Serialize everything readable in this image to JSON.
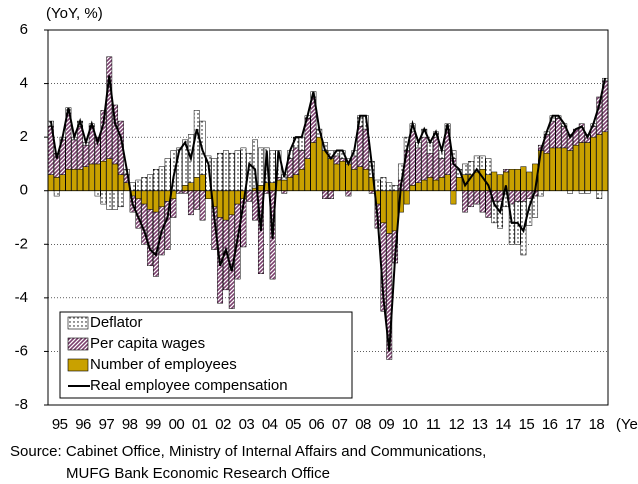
{
  "chart_data": {
    "type": "stacked-bar-line",
    "y_label": "(YoY, %)",
    "x_label": "(Year)",
    "source": [
      "Source: Cabinet Office, Ministry of Internal Affairs and Communications,",
      "MUFG Bank Economic Research Office"
    ],
    "categories": [
      "95",
      null,
      null,
      null,
      "96",
      null,
      null,
      null,
      "97",
      null,
      null,
      null,
      "98",
      null,
      null,
      null,
      "99",
      null,
      null,
      null,
      "00",
      null,
      null,
      null,
      "01",
      null,
      null,
      null,
      "02",
      null,
      null,
      null,
      "03",
      null,
      null,
      null,
      "04",
      null,
      null,
      null,
      "05",
      null,
      null,
      null,
      "06",
      null,
      null,
      null,
      "07",
      null,
      null,
      null,
      "08",
      null,
      null,
      null,
      "09",
      null,
      null,
      null,
      "10",
      null,
      null,
      null,
      "11",
      null,
      null,
      null,
      "12",
      null,
      null,
      null,
      "13",
      null,
      null,
      null,
      "14",
      null,
      null,
      null,
      "15",
      null,
      null,
      null,
      "16",
      null,
      null,
      null,
      "17",
      null,
      null,
      null,
      "18",
      null,
      null,
      null
    ],
    "series": [
      {
        "name": "Deflator",
        "type": "bar",
        "pattern": "dots",
        "color": "#ffffff",
        "values": [
          0.2,
          -0.2,
          0.1,
          0.2,
          0.1,
          0.2,
          0.1,
          0.1,
          -0.2,
          -0.5,
          -0.7,
          -0.7,
          -0.6,
          0.2,
          0.3,
          0.4,
          0.5,
          0.6,
          0.8,
          0.9,
          1.2,
          1.5,
          1.6,
          1.7,
          1.8,
          2.5,
          2.0,
          1.3,
          1.2,
          1.4,
          1.5,
          1.4,
          1.5,
          1.6,
          1.4,
          1.8,
          1.4,
          1.3,
          1.2,
          1.0,
          0.2,
          0.3,
          0.4,
          0.5,
          0.1,
          0.2,
          0.3,
          0.3,
          0.3,
          0.2,
          0.3,
          0.2,
          0.2,
          0.4,
          0.5,
          0.6,
          0.4,
          0.5,
          0.3,
          0.2,
          0.6,
          0.5,
          0.3,
          0.2,
          0.3,
          0.4,
          0.2,
          0.3,
          0.2,
          0.3,
          0.3,
          0.4,
          0.5,
          0.6,
          0.5,
          0.6,
          -0.8,
          -1.0,
          -0.6,
          -1.5,
          -1.6,
          -2.0,
          -1.0,
          -0.8,
          -0.2,
          0.1,
          0.2,
          0.1,
          0.1,
          -0.1,
          0.0,
          -0.1,
          -0.1,
          0.1,
          -0.3,
          0.1
        ]
      },
      {
        "name": "Per capita wages",
        "type": "bar",
        "pattern": "stripes",
        "color": "#7b3f6e",
        "values": [
          1.8,
          0.9,
          1.3,
          2.1,
          1.1,
          1.6,
          0.8,
          1.4,
          1.0,
          1.9,
          3.8,
          2.2,
          2.0,
          0.3,
          -0.6,
          -1.1,
          -1.5,
          -2.1,
          -2.4,
          -1.8,
          -1.8,
          -0.7,
          -0.1,
          -0.1,
          -0.9,
          -0.7,
          -1.1,
          0.0,
          -1.6,
          -3.2,
          -2.6,
          -3.5,
          -2.8,
          -1.8,
          -0.4,
          -1.1,
          -3.1,
          -0.1,
          -3.3,
          0.1,
          -0.1,
          0.7,
          1.0,
          0.7,
          1.5,
          1.7,
          0.0,
          -0.3,
          -0.3,
          0.3,
          0.1,
          -0.2,
          0.5,
          1.5,
          1.5,
          -0.1,
          -0.9,
          -3.3,
          -4.7,
          -1.2,
          0.4,
          1.5,
          2.0,
          1.3,
          1.6,
          0.9,
          1.6,
          0.7,
          1.7,
          1.2,
          0.0,
          -0.8,
          -0.6,
          -0.5,
          -0.8,
          -1.0,
          -0.4,
          -0.4,
          0.1,
          -0.5,
          -0.4,
          -0.4,
          -0.3,
          -0.2,
          0.2,
          0.7,
          1.0,
          1.1,
          0.8,
          0.6,
          0.6,
          0.7,
          0.3,
          0.4,
          1.4,
          1.9
        ]
      },
      {
        "name": "Number of employees",
        "type": "bar",
        "pattern": "solid",
        "color": "#c9a100",
        "values": [
          0.6,
          0.5,
          0.6,
          0.8,
          0.8,
          0.8,
          0.9,
          1.0,
          1.0,
          1.1,
          1.2,
          1.0,
          0.6,
          0.3,
          -0.2,
          -0.3,
          -0.5,
          -0.7,
          -0.8,
          -0.6,
          -0.4,
          -0.3,
          0.0,
          0.2,
          0.3,
          0.5,
          0.6,
          -0.3,
          -0.6,
          -1.0,
          -1.1,
          -0.9,
          -0.5,
          -0.3,
          0.0,
          0.1,
          0.2,
          0.3,
          0.3,
          0.4,
          0.4,
          0.5,
          0.6,
          0.8,
          1.2,
          1.8,
          2.0,
          1.5,
          1.2,
          1.0,
          1.1,
          1.0,
          0.8,
          0.9,
          0.8,
          0.5,
          -0.5,
          -1.2,
          -1.6,
          -1.5,
          -0.8,
          -0.5,
          0.2,
          0.3,
          0.4,
          0.5,
          0.4,
          0.5,
          0.6,
          -0.5,
          0.5,
          0.6,
          0.6,
          0.7,
          0.8,
          0.6,
          0.7,
          0.6,
          0.7,
          0.8,
          0.8,
          0.9,
          0.7,
          1.0,
          1.5,
          1.4,
          1.6,
          1.6,
          1.6,
          1.5,
          1.7,
          1.8,
          1.8,
          2.0,
          2.1,
          2.2
        ]
      },
      {
        "name": "Real employee compensation",
        "type": "line",
        "color": "#000000",
        "values": [
          2.6,
          1.2,
          2.0,
          3.1,
          2.0,
          2.6,
          1.8,
          2.5,
          1.8,
          2.5,
          4.3,
          2.5,
          2.0,
          0.8,
          -0.5,
          -1.0,
          -1.5,
          -2.2,
          -2.4,
          -1.5,
          -1.0,
          0.5,
          1.5,
          1.8,
          1.2,
          2.3,
          1.5,
          1.0,
          -1.0,
          -2.8,
          -2.2,
          -3.0,
          -1.8,
          -0.5,
          1.0,
          0.8,
          -1.5,
          1.5,
          -1.8,
          1.5,
          0.5,
          1.5,
          2.0,
          2.0,
          2.8,
          3.7,
          2.3,
          1.5,
          1.2,
          1.5,
          1.5,
          1.0,
          1.5,
          2.8,
          2.8,
          1.0,
          -1.0,
          -4.0,
          -6.0,
          -2.5,
          0.2,
          1.5,
          2.5,
          1.8,
          2.3,
          1.8,
          2.2,
          1.5,
          2.5,
          1.0,
          0.8,
          0.2,
          0.5,
          0.8,
          0.5,
          0.2,
          -0.5,
          -0.8,
          0.2,
          -1.2,
          -1.2,
          -1.5,
          -0.6,
          0.0,
          1.5,
          2.2,
          2.8,
          2.8,
          2.5,
          2.0,
          2.3,
          2.4,
          2.0,
          2.5,
          3.2,
          4.2
        ]
      }
    ],
    "ylim": [
      -8,
      6
    ],
    "yticks": [
      -8,
      -6,
      -4,
      -2,
      0,
      2,
      4,
      6
    ],
    "grid": true,
    "legend": "lower left"
  }
}
